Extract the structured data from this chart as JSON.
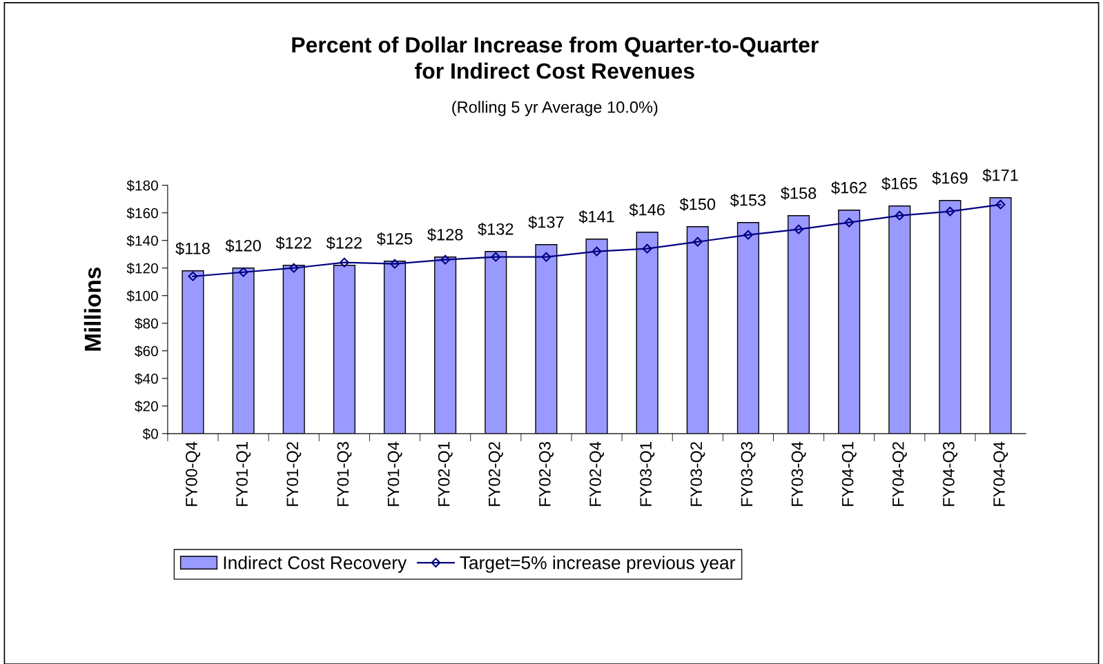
{
  "chart_data": {
    "type": "bar",
    "title": "Percent of Dollar Increase from Quarter-to-Quarter\nfor Indirect Cost Revenues",
    "subtitle": "(Rolling 5 yr Average 10.0%)",
    "ylabel": "Millions",
    "categories": [
      "FY00-Q4",
      "FY01-Q1",
      "FY01-Q2",
      "FY01-Q3",
      "FY01-Q4",
      "FY02-Q1",
      "FY02-Q2",
      "FY02-Q3",
      "FY02-Q4",
      "FY03-Q1",
      "FY03-Q2",
      "FY03-Q3",
      "FY03-Q4",
      "FY04-Q1",
      "FY04-Q2",
      "FY04-Q3",
      "FY04-Q4"
    ],
    "series": [
      {
        "name": "Indirect Cost Recovery",
        "color": "#9999ff",
        "values": [
          118,
          120,
          122,
          122,
          125,
          128,
          132,
          137,
          141,
          146,
          150,
          153,
          158,
          162,
          165,
          169,
          171
        ],
        "value_labels": [
          "$118",
          "$120",
          "$122",
          "$122",
          "$125",
          "$128",
          "$132",
          "$137",
          "$141",
          "$146",
          "$150",
          "$153",
          "$158",
          "$162",
          "$165",
          "$169",
          "$171"
        ]
      },
      {
        "name": "Target=5% increase previous year",
        "type": "line",
        "color": "#000080",
        "marker": "diamond",
        "line_style": "solid",
        "values": [
          114,
          117,
          120,
          124,
          123,
          126,
          128,
          128,
          132,
          134,
          139,
          144,
          148,
          153,
          158,
          161,
          166
        ]
      }
    ],
    "ylim": [
      0,
      180
    ],
    "yticks": [
      {
        "value": 0,
        "label": "$0"
      },
      {
        "value": 20,
        "label": "$20"
      },
      {
        "value": 40,
        "label": "$40"
      },
      {
        "value": 60,
        "label": "$60"
      },
      {
        "value": 80,
        "label": "$80"
      },
      {
        "value": 100,
        "label": "$100"
      },
      {
        "value": 120,
        "label": "$120"
      },
      {
        "value": 140,
        "label": "$140"
      },
      {
        "value": 160,
        "label": "$160"
      },
      {
        "value": 180,
        "label": "$180"
      }
    ],
    "grid": false,
    "legend": "bottom"
  }
}
